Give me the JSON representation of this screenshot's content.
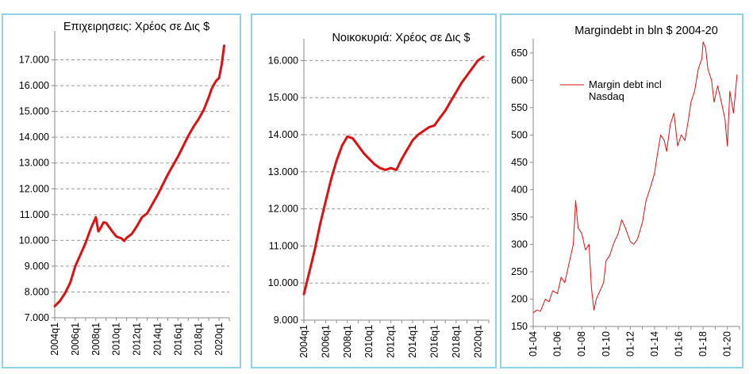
{
  "chart_data": [
    {
      "type": "line",
      "title": "Επιχειρησεις: Χρέος σε Δις $",
      "xlabel": "",
      "ylabel": "",
      "ylim": [
        7000,
        18000
      ],
      "ytick_labels": [
        "7.000",
        "8.000",
        "9.000",
        "10.000",
        "11.000",
        "12.000",
        "13.000",
        "14.000",
        "15.000",
        "16.000",
        "17.000"
      ],
      "yticks": [
        7000,
        8000,
        9000,
        10000,
        11000,
        12000,
        13000,
        14000,
        15000,
        16000,
        17000
      ],
      "x_range": [
        2004.0,
        2021.0
      ],
      "xtick_labels": [
        "2004q1",
        "2006q1",
        "2008q1",
        "2010q1",
        "2012q1",
        "2014q1",
        "2016q1",
        "2018q1",
        "2020q1"
      ],
      "xticks": [
        2004,
        2006,
        2008,
        2010,
        2012,
        2014,
        2016,
        2018,
        2020
      ],
      "grid": true,
      "color": "#dd1111",
      "series": [
        {
          "x": [
            2004.0,
            2004.5,
            2005.0,
            2005.5,
            2006.0,
            2006.5,
            2007.0,
            2007.5,
            2008.0,
            2008.25,
            2008.5,
            2008.75,
            2009.0,
            2009.5,
            2010.0,
            2010.5,
            2010.75,
            2011.0,
            2011.5,
            2012.0,
            2012.5,
            2013.0,
            2013.5,
            2014.0,
            2014.5,
            2015.0,
            2015.5,
            2016.0,
            2016.5,
            2017.0,
            2017.5,
            2018.0,
            2018.5,
            2019.0,
            2019.25,
            2019.5,
            2019.75,
            2020.0,
            2020.25,
            2020.5
          ],
          "values": [
            7450,
            7650,
            7950,
            8350,
            9000,
            9450,
            9900,
            10450,
            10900,
            10350,
            10500,
            10700,
            10680,
            10400,
            10150,
            10080,
            9980,
            10100,
            10250,
            10550,
            10900,
            11050,
            11400,
            11750,
            12150,
            12550,
            12900,
            13250,
            13650,
            14050,
            14400,
            14700,
            15050,
            15550,
            15850,
            16050,
            16200,
            16300,
            16800,
            17550
          ]
        }
      ]
    },
    {
      "type": "line",
      "title": "Νοικοκυριά: Χρέος σε Δις $",
      "xlabel": "",
      "ylabel": "",
      "ylim": [
        9000,
        16500
      ],
      "ytick_labels": [
        "9.000",
        "10.000",
        "11.000",
        "12.000",
        "13.000",
        "14.000",
        "15.000",
        "16.000"
      ],
      "yticks": [
        9000,
        10000,
        11000,
        12000,
        13000,
        14000,
        15000,
        16000
      ],
      "x_range": [
        2004.0,
        2021.0
      ],
      "xtick_labels": [
        "2004q1",
        "2006q1",
        "2008q1",
        "2010q1",
        "2012q1",
        "2014q1",
        "2016q1",
        "2018q1",
        "2020q1"
      ],
      "xticks": [
        2004,
        2006,
        2008,
        2010,
        2012,
        2014,
        2016,
        2018,
        2020
      ],
      "grid": true,
      "color": "#dd1111",
      "series": [
        {
          "x": [
            2004.0,
            2004.5,
            2005.0,
            2005.5,
            2006.0,
            2006.5,
            2007.0,
            2007.5,
            2008.0,
            2008.5,
            2009.0,
            2009.5,
            2010.0,
            2010.5,
            2011.0,
            2011.5,
            2012.0,
            2012.5,
            2013.0,
            2013.5,
            2014.0,
            2014.5,
            2015.0,
            2015.5,
            2016.0,
            2016.5,
            2017.0,
            2017.5,
            2018.0,
            2018.5,
            2019.0,
            2019.5,
            2020.0,
            2020.5
          ],
          "values": [
            9700,
            10300,
            10900,
            11600,
            12200,
            12800,
            13300,
            13700,
            13950,
            13900,
            13700,
            13500,
            13350,
            13200,
            13100,
            13050,
            13100,
            13050,
            13350,
            13600,
            13850,
            14000,
            14100,
            14200,
            14250,
            14450,
            14650,
            14900,
            15150,
            15400,
            15600,
            15800,
            16000,
            16100
          ]
        }
      ]
    },
    {
      "type": "line",
      "title": "Margindebt in bln $ 2004-20",
      "xlabel": "",
      "ylabel": "",
      "ylim": [
        150,
        670
      ],
      "ytick_labels": [
        "150",
        "200",
        "250",
        "300",
        "350",
        "400",
        "450",
        "500",
        "550",
        "600",
        "650"
      ],
      "yticks": [
        150,
        200,
        250,
        300,
        350,
        400,
        450,
        500,
        550,
        600,
        650
      ],
      "x_range": [
        2004.0,
        2021.0
      ],
      "xtick_labels": [
        "01-04",
        "01-06",
        "01-08",
        "01-10",
        "01-12",
        "01-14",
        "01-16",
        "01-18",
        "01-20"
      ],
      "xticks": [
        2004,
        2006,
        2008,
        2010,
        2012,
        2014,
        2016,
        2018,
        2020
      ],
      "grid": false,
      "color": "#dd1111",
      "legend": {
        "label": "Margin debt incl Nasdaq",
        "position": "top-left"
      },
      "series": [
        {
          "name": "Margin debt incl Nasdaq",
          "x": [
            2004.0,
            2004.3,
            2004.6,
            2005.0,
            2005.3,
            2005.6,
            2006.0,
            2006.3,
            2006.6,
            2007.0,
            2007.3,
            2007.5,
            2007.7,
            2008.0,
            2008.3,
            2008.6,
            2008.8,
            2009.0,
            2009.2,
            2009.5,
            2009.8,
            2010.0,
            2010.3,
            2010.6,
            2011.0,
            2011.3,
            2011.6,
            2012.0,
            2012.3,
            2012.6,
            2013.0,
            2013.3,
            2013.6,
            2014.0,
            2014.2,
            2014.5,
            2014.8,
            2015.0,
            2015.3,
            2015.6,
            2015.9,
            2016.2,
            2016.5,
            2016.8,
            2017.0,
            2017.3,
            2017.6,
            2017.9,
            2018.0,
            2018.2,
            2018.4,
            2018.7,
            2018.9,
            2019.2,
            2019.5,
            2019.8,
            2020.0,
            2020.2,
            2020.5,
            2020.8
          ],
          "values": [
            175,
            180,
            178,
            200,
            195,
            215,
            210,
            240,
            230,
            270,
            300,
            380,
            330,
            320,
            290,
            300,
            220,
            180,
            200,
            215,
            230,
            270,
            280,
            300,
            320,
            345,
            330,
            305,
            300,
            310,
            340,
            380,
            400,
            430,
            460,
            500,
            490,
            470,
            520,
            540,
            480,
            500,
            490,
            530,
            560,
            580,
            620,
            640,
            670,
            660,
            620,
            600,
            560,
            590,
            560,
            530,
            480,
            580,
            540,
            610
          ]
        }
      ]
    }
  ]
}
